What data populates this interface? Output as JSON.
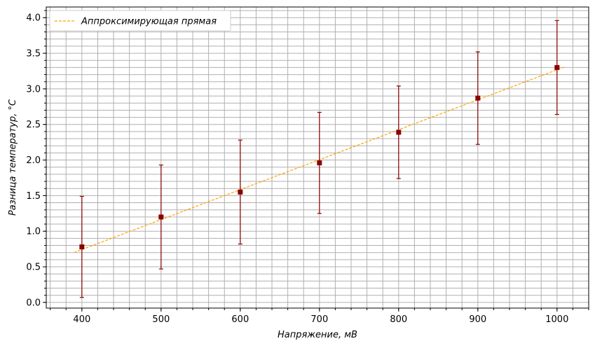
{
  "chart_data": {
    "type": "scatter",
    "xlabel": "Напряжение, мВ",
    "ylabel": "Разница температур, °C",
    "xlim": [
      355,
      1040
    ],
    "ylim": [
      -0.08,
      4.15
    ],
    "x_ticks": [
      400,
      500,
      600,
      700,
      800,
      900,
      1000
    ],
    "y_ticks": [
      0.0,
      0.5,
      1.0,
      1.5,
      2.0,
      2.5,
      3.0,
      3.5,
      4.0
    ],
    "x_minor_step": 20,
    "y_minor_step": 0.1,
    "grid": true,
    "legend_position": "top-left",
    "series": [
      {
        "name": "",
        "style": "markers-with-error-bars",
        "color": "#8b0000",
        "points": [
          {
            "x": 400,
            "y": 0.78,
            "ylow": 0.07,
            "yhigh": 1.49
          },
          {
            "x": 500,
            "y": 1.2,
            "ylow": 0.47,
            "yhigh": 1.93
          },
          {
            "x": 600,
            "y": 1.55,
            "ylow": 0.82,
            "yhigh": 2.28
          },
          {
            "x": 700,
            "y": 1.96,
            "ylow": 1.25,
            "yhigh": 2.67
          },
          {
            "x": 800,
            "y": 2.39,
            "ylow": 1.74,
            "yhigh": 3.04
          },
          {
            "x": 900,
            "y": 2.87,
            "ylow": 2.22,
            "yhigh": 3.52
          },
          {
            "x": 1000,
            "y": 3.3,
            "ylow": 2.64,
            "yhigh": 3.96
          }
        ]
      },
      {
        "name": "Аппроксимирующая прямая",
        "style": "dashed-line",
        "color": "#ffa500",
        "x": [
          390,
          1010
        ],
        "y": [
          0.7,
          3.31
        ]
      }
    ]
  }
}
